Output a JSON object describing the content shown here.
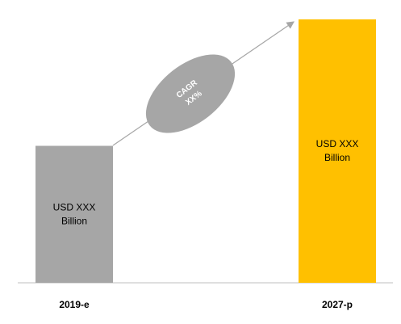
{
  "chart_data": {
    "type": "bar",
    "categories": [
      "2019-e",
      "2027-p"
    ],
    "values": [
      52,
      100
    ],
    "colors": [
      "#a6a6a6",
      "#ffc000"
    ],
    "bar_labels": [
      [
        "USD XXX",
        "Billion"
      ],
      [
        "USD XXX",
        "Billion"
      ]
    ],
    "annotation": [
      "CAGR",
      "XX%"
    ],
    "ylim": [
      0,
      100
    ]
  }
}
